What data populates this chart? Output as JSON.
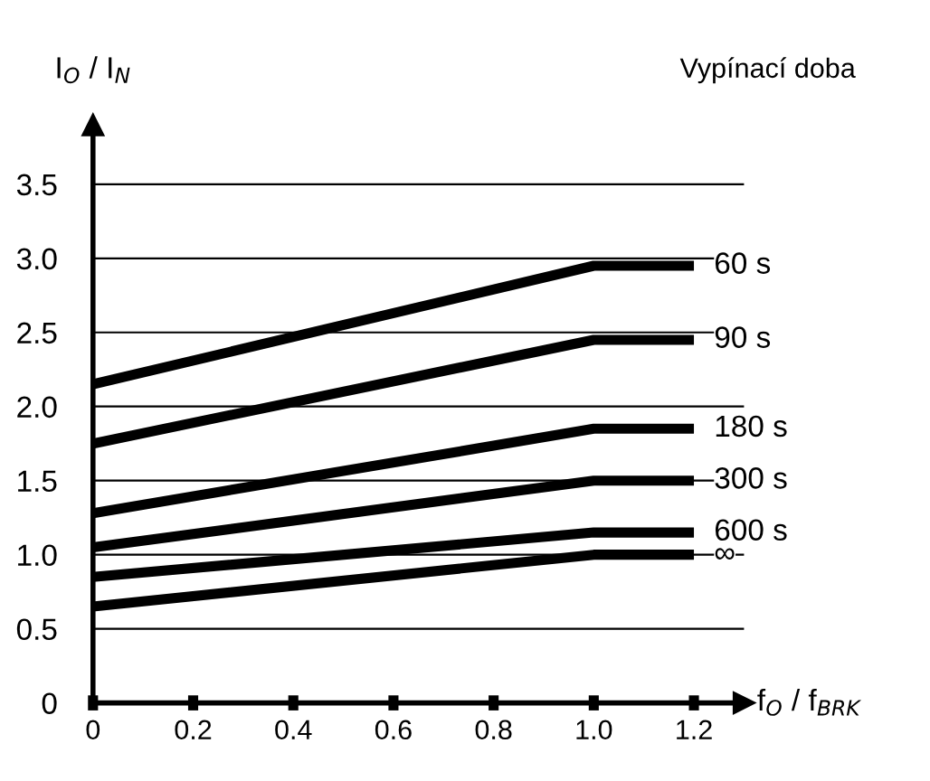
{
  "chart_data": {
    "type": "line",
    "xlabel": "f$_{O}$ / f$_{BRK}$",
    "ylabel": "I$_{O}$ / I$_{N}$",
    "legend_title": "Vypínací doba",
    "x": [
      0,
      1.0,
      1.2
    ],
    "series": [
      {
        "name": "60 s",
        "color": "#000000",
        "values": [
          2.15,
          2.95,
          2.95
        ]
      },
      {
        "name": "90 s",
        "color": "#000000",
        "values": [
          1.75,
          2.45,
          2.45
        ]
      },
      {
        "name": "180 s",
        "color": "#000000",
        "values": [
          1.28,
          1.85,
          1.85
        ]
      },
      {
        "name": "300 s",
        "color": "#000000",
        "values": [
          1.05,
          1.5,
          1.5
        ]
      },
      {
        "name": "600 s",
        "color": "#000000",
        "values": [
          0.85,
          1.15,
          1.15
        ]
      },
      {
        "name": "∞",
        "color": "#000000",
        "values": [
          0.65,
          1.0,
          1.0
        ]
      }
    ],
    "xlim": [
      0,
      1.3
    ],
    "ylim": [
      0,
      3.9
    ],
    "xticks": [
      0,
      0.2,
      0.4,
      0.6,
      0.8,
      {
        "value": 1.0,
        "label": "1.0"
      },
      1.2
    ],
    "yticks": [
      0,
      0.5,
      {
        "value": 1.0,
        "label": "1.0"
      },
      1.5,
      {
        "value": 2.0,
        "label": "2.0"
      },
      2.5,
      {
        "value": 3.0,
        "label": "3.0"
      },
      3.5
    ],
    "grid": "y",
    "legend": false,
    "marker": "none",
    "line_style": "solid"
  }
}
